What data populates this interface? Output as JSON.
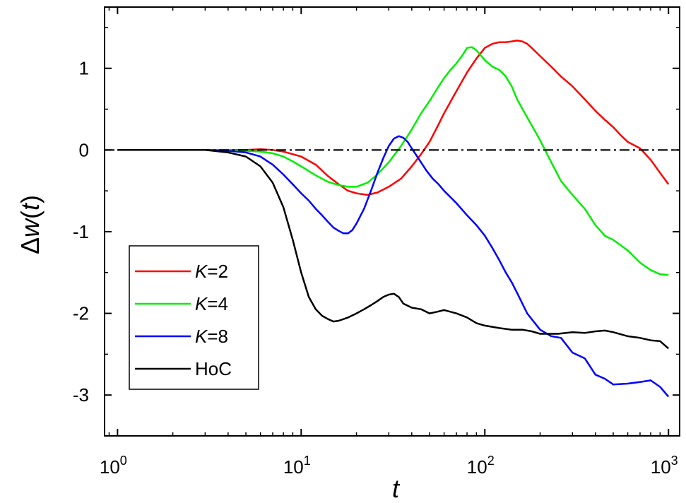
{
  "chart_data": {
    "type": "line",
    "xscale": "log",
    "xlim": [
      0.85,
      1150
    ],
    "ylim": [
      -3.5,
      1.75
    ],
    "xlabel": "t",
    "ylabel": "Δw(t)",
    "ylabel_prefix": "Δ",
    "ylabel_var": "w",
    "ylabel_arg": "(t)",
    "x_ticks": [
      {
        "base": "10",
        "exp": "0",
        "value": 1
      },
      {
        "base": "10",
        "exp": "1",
        "value": 10
      },
      {
        "base": "10",
        "exp": "2",
        "value": 100
      },
      {
        "base": "10",
        "exp": "3",
        "value": 1000
      }
    ],
    "y_ticks": [
      {
        "label": "-3",
        "value": -3
      },
      {
        "label": "-2",
        "value": -2
      },
      {
        "label": "-1",
        "value": -1
      },
      {
        "label": "0",
        "value": 0
      },
      {
        "label": "1",
        "value": 1
      }
    ],
    "reference_line": {
      "y": 0,
      "style": "dash-dot",
      "color": "#000000"
    },
    "legend": {
      "position": "bottom-left"
    },
    "series": [
      {
        "name": "K=2",
        "legend_var": "K",
        "legend_val": "=2",
        "color": "#ff0000",
        "x": [
          1,
          2,
          3,
          4,
          5,
          6,
          7,
          8,
          10,
          12,
          14,
          16,
          18,
          20,
          23,
          26,
          30,
          35,
          40,
          45,
          50,
          55,
          60,
          70,
          80,
          90,
          100,
          110,
          120,
          130,
          140,
          150,
          160,
          170,
          180,
          200,
          230,
          260,
          300,
          350,
          400,
          450,
          500,
          550,
          600,
          700,
          800,
          900,
          1000
        ],
        "y": [
          0,
          0,
          0,
          0,
          0,
          0.01,
          0,
          -0.02,
          -0.08,
          -0.18,
          -0.32,
          -0.42,
          -0.5,
          -0.53,
          -0.55,
          -0.52,
          -0.45,
          -0.35,
          -0.2,
          -0.05,
          0.1,
          0.28,
          0.45,
          0.72,
          0.95,
          1.12,
          1.25,
          1.3,
          1.32,
          1.32,
          1.33,
          1.34,
          1.33,
          1.3,
          1.25,
          1.15,
          1.02,
          0.9,
          0.78,
          0.62,
          0.48,
          0.37,
          0.28,
          0.18,
          0.1,
          0.02,
          -0.12,
          -0.28,
          -0.42
        ]
      },
      {
        "name": "K=4",
        "legend_var": "K",
        "legend_val": "=4",
        "color": "#00ee00",
        "x": [
          1,
          2,
          3,
          4,
          5,
          6,
          7,
          8,
          9,
          10,
          12,
          14,
          16,
          18,
          20,
          23,
          26,
          30,
          35,
          40,
          45,
          50,
          55,
          60,
          65,
          70,
          75,
          80,
          85,
          90,
          100,
          110,
          120,
          130,
          140,
          150,
          170,
          200,
          230,
          260,
          300,
          350,
          400,
          450,
          500,
          600,
          700,
          800,
          900,
          1000
        ],
        "y": [
          0,
          0,
          0,
          0,
          -0.01,
          -0.02,
          -0.04,
          -0.08,
          -0.14,
          -0.2,
          -0.31,
          -0.39,
          -0.43,
          -0.45,
          -0.45,
          -0.4,
          -0.3,
          -0.15,
          0.05,
          0.25,
          0.45,
          0.6,
          0.75,
          0.88,
          0.98,
          1.06,
          1.15,
          1.25,
          1.26,
          1.22,
          1.1,
          1.02,
          0.98,
          0.9,
          0.78,
          0.62,
          0.4,
          0.12,
          -0.15,
          -0.38,
          -0.55,
          -0.72,
          -0.92,
          -1.05,
          -1.1,
          -1.23,
          -1.38,
          -1.47,
          -1.52,
          -1.53
        ]
      },
      {
        "name": "K=8",
        "legend_var": "K",
        "legend_val": "=8",
        "color": "#0000ff",
        "x": [
          1,
          2,
          3,
          4,
          5,
          6,
          7,
          8,
          9,
          10,
          11,
          12,
          13,
          14,
          15,
          16,
          17,
          18,
          19,
          20,
          22,
          24,
          26,
          28,
          30,
          32,
          34,
          36,
          38,
          40,
          44,
          48,
          52,
          56,
          60,
          70,
          80,
          90,
          100,
          110,
          120,
          130,
          140,
          150,
          170,
          200,
          230,
          260,
          300,
          350,
          400,
          450,
          500,
          600,
          700,
          800,
          900,
          1000
        ],
        "y": [
          0,
          0,
          0,
          -0.01,
          -0.03,
          -0.08,
          -0.18,
          -0.3,
          -0.42,
          -0.53,
          -0.62,
          -0.72,
          -0.8,
          -0.88,
          -0.95,
          -0.99,
          -1.02,
          -1.02,
          -0.98,
          -0.9,
          -0.72,
          -0.5,
          -0.28,
          -0.1,
          0.05,
          0.14,
          0.17,
          0.15,
          0.1,
          0.02,
          -0.12,
          -0.25,
          -0.35,
          -0.42,
          -0.5,
          -0.65,
          -0.8,
          -0.92,
          -1.05,
          -1.2,
          -1.35,
          -1.5,
          -1.62,
          -1.75,
          -2.0,
          -2.2,
          -2.28,
          -2.3,
          -2.48,
          -2.55,
          -2.75,
          -2.8,
          -2.87,
          -2.86,
          -2.84,
          -2.82,
          -2.9,
          -3.02
        ]
      },
      {
        "name": "HoC",
        "legend_var": "",
        "legend_val": "HoC",
        "color": "#000000",
        "x": [
          1,
          2,
          3,
          4,
          5,
          6,
          7,
          8,
          9,
          10,
          11,
          12,
          13,
          14,
          15,
          16,
          17,
          18,
          20,
          22,
          24,
          26,
          28,
          30,
          32,
          34,
          36,
          40,
          45,
          50,
          55,
          60,
          65,
          70,
          80,
          90,
          100,
          120,
          140,
          160,
          180,
          200,
          250,
          300,
          350,
          400,
          450,
          500,
          600,
          700,
          800,
          900,
          1000
        ],
        "y": [
          0,
          0,
          0,
          -0.03,
          -0.08,
          -0.2,
          -0.4,
          -0.7,
          -1.1,
          -1.5,
          -1.8,
          -1.95,
          -2.03,
          -2.07,
          -2.1,
          -2.09,
          -2.07,
          -2.05,
          -2.0,
          -1.95,
          -1.9,
          -1.85,
          -1.8,
          -1.77,
          -1.76,
          -1.8,
          -1.88,
          -1.93,
          -1.95,
          -2.0,
          -1.98,
          -1.96,
          -1.98,
          -2.0,
          -2.05,
          -2.12,
          -2.15,
          -2.18,
          -2.2,
          -2.2,
          -2.22,
          -2.25,
          -2.25,
          -2.23,
          -2.24,
          -2.22,
          -2.21,
          -2.23,
          -2.28,
          -2.3,
          -2.33,
          -2.34,
          -2.43
        ]
      }
    ]
  }
}
